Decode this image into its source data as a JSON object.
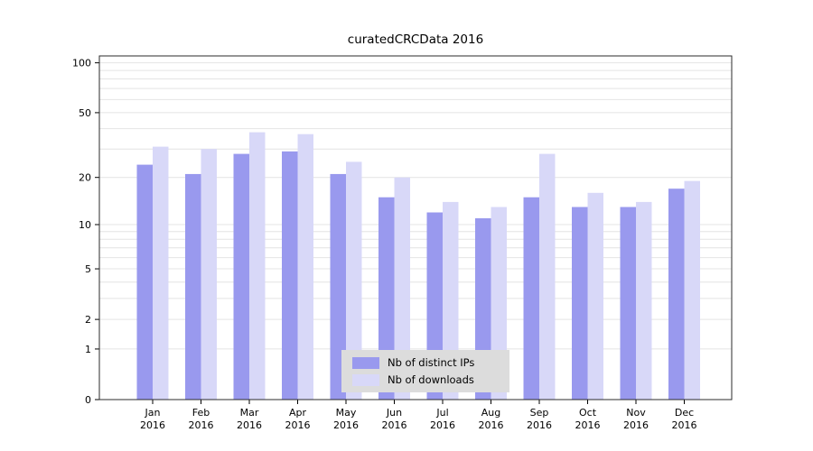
{
  "chart_data": {
    "type": "bar",
    "title": "curatedCRCData 2016",
    "scale": "log1p",
    "ylim": [
      0,
      110
    ],
    "yticks": [
      0,
      1,
      2,
      5,
      10,
      20,
      50,
      100
    ],
    "gridlines": [
      1,
      2,
      3,
      4,
      5,
      6,
      7,
      8,
      9,
      10,
      20,
      30,
      40,
      50,
      60,
      70,
      80,
      90,
      100
    ],
    "categories": [
      "Jan",
      "Feb",
      "Mar",
      "Apr",
      "May",
      "Jun",
      "Jul",
      "Aug",
      "Sep",
      "Oct",
      "Nov",
      "Dec"
    ],
    "year": "2016",
    "legend_position": "bottom-center",
    "grid": true,
    "series": [
      {
        "name": "Nb of distinct IPs",
        "color": "#9999ee",
        "values": [
          24,
          21,
          28,
          29,
          21,
          15,
          12,
          11,
          15,
          13,
          13,
          17
        ]
      },
      {
        "name": "Nb of downloads",
        "color": "#d8d8f8",
        "values": [
          31,
          30,
          38,
          37,
          25,
          20,
          14,
          13,
          28,
          16,
          14,
          19
        ]
      }
    ]
  }
}
